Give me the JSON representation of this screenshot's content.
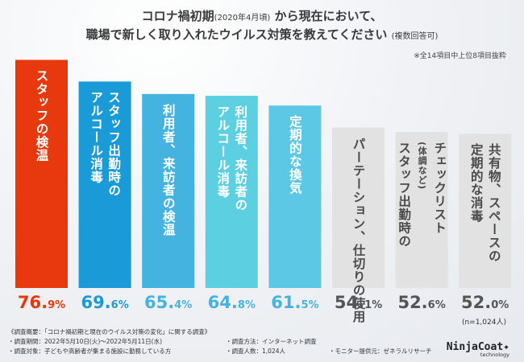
{
  "title_line1_prefix": "コロナ禍初期",
  "title_line1_small": "(2020年4月頃)",
  "title_line1_suffix": "から現在において、",
  "title_line2_main": "職場で新しく取り入れたウイルス対策を教えてください",
  "title_line2_small": "(複数回答可)",
  "note": "※全14項目中上位8項目抜粋",
  "sample_size": "(n=1,024人)",
  "chart_data": {
    "type": "bar",
    "categories": [
      "スタッフの検温",
      "スタッフ出勤時の アルコール消毒",
      "利用者、来訪者の検温",
      "利用者、来訪者の アルコール消毒",
      "定期的な換気",
      "パーテーション、仕切りの使用",
      "チェックリスト(体調など) スタッフ出勤時の",
      "共有物、スペースの 定期的な消毒"
    ],
    "label_lines": [
      [
        "スタッフの検温"
      ],
      [
        "スタッフ出勤時の",
        "アルコール消毒"
      ],
      [
        "利用者、来訪者の検温"
      ],
      [
        "利用者、来訪者の",
        "アルコール消毒"
      ],
      [
        "定期的な換気"
      ],
      [
        "パーテーション、仕切りの使用"
      ],
      [
        "チェックリスト",
        "(体調など)",
        "スタッフ出勤時の"
      ],
      [
        "共有物、スペースの",
        "定期的な消毒"
      ]
    ],
    "values": [
      76.9,
      69.6,
      65.4,
      64.8,
      61.5,
      54.1,
      52.6,
      52.0
    ],
    "value_int": [
      "76.",
      "69.",
      "65.",
      "64.",
      "61.",
      "54.",
      "52.",
      "52."
    ],
    "value_dec": [
      "9%",
      "6%",
      "4%",
      "8%",
      "5%",
      "1%",
      "6%",
      "0%"
    ],
    "colors": [
      "#e8380d",
      "#1a9ad6",
      "#45b3e0",
      "#5ccfe0",
      "#5dc7e6",
      "#e2e2e2",
      "#e2e2e2",
      "#e2e2e2"
    ],
    "pct_colors": [
      "#e8380d",
      "#1a9ad6",
      "#45b3e0",
      "#45b3e0",
      "#45b3e0",
      "#555555",
      "#555555",
      "#555555"
    ],
    "ylim": [
      0,
      80
    ],
    "unit": "%"
  },
  "footer": {
    "title": "《調査概要：「コロナ禍初期と現在のウイルス対策の変化」に関する調査》",
    "period": "・調査期間：2022年5月10日(火)〜2022年5月11日(水)",
    "method": "・調査方法：インターネット調査",
    "target": "・調査対象：子どもや高齢者が集まる施設に勤務している方",
    "count": "・調査人数：1,024人",
    "monitor": "・モニター提供元：ゼネラルリサーチ"
  },
  "logo": {
    "brand": "NinjaCoat",
    "tag": "technology"
  }
}
